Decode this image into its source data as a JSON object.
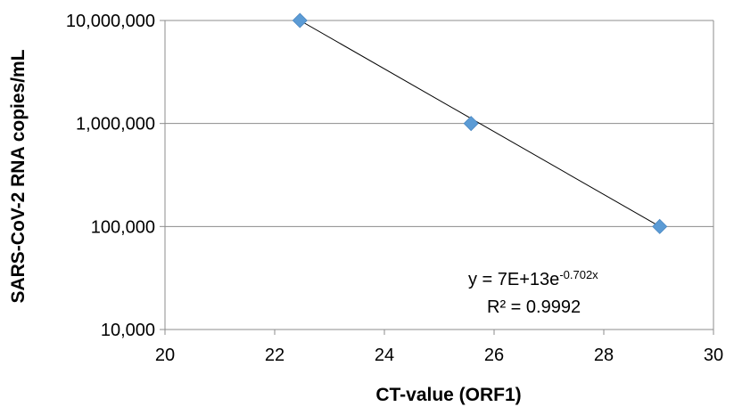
{
  "chart_data": {
    "type": "scatter",
    "title": "",
    "xlabel": "CT-value (ORF1)",
    "ylabel": "SARS-CoV-2 RNA copies/mL",
    "xlim": [
      20,
      30
    ],
    "ylim": [
      10000,
      10000000
    ],
    "y_scale": "log",
    "grid": "horizontal major gridlines",
    "x_ticks": [
      20,
      22,
      24,
      26,
      28,
      30
    ],
    "x_tick_labels": [
      "20",
      "22",
      "24",
      "26",
      "28",
      "30"
    ],
    "y_ticks": [
      10000,
      100000,
      1000000,
      10000000
    ],
    "y_tick_labels": [
      "10,000",
      "100,000",
      "1,000,000",
      "10,000,000"
    ],
    "series": [
      {
        "x": [
          22.46,
          25.58,
          29.02
        ],
        "y": [
          10000000,
          1000000,
          100000
        ],
        "marker": "diamond",
        "color": "#5B9BD5"
      }
    ],
    "trendline": {
      "type": "exponential",
      "x_range": [
        22.46,
        29.02
      ],
      "y_range": [
        10000000,
        100000
      ],
      "color": "#000000"
    },
    "annotations": {
      "equation_base": "y = 7E+13e",
      "equation_exponent": "-0.702x",
      "r_squared": "R² = 0.9992"
    }
  }
}
